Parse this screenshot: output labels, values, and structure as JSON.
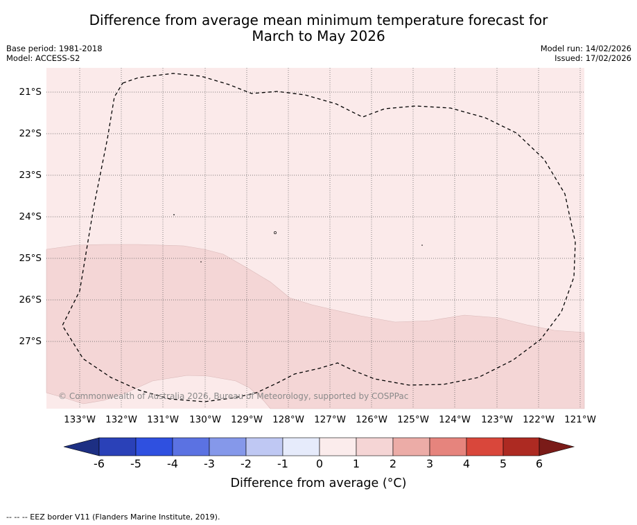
{
  "title_line1": "Difference from average mean minimum temperature forecast for",
  "title_line2": "March to May 2026",
  "base_period": "Base period: 1981-2018",
  "model": "Model: ACCESS-S2",
  "model_run": "Model run: 14/02/2026",
  "issued": "Issued: 17/02/2026",
  "copyright": "© Commonwealth of Australia 2026, Bureau of Meteorology, supported by COSPPac",
  "x_ticks": [
    "133°W",
    "132°W",
    "131°W",
    "130°W",
    "129°W",
    "128°W",
    "127°W",
    "126°W",
    "125°W",
    "124°W",
    "123°W",
    "122°W",
    "121°W"
  ],
  "y_ticks": [
    "21°S",
    "22°S",
    "23°S",
    "24°S",
    "25°S",
    "26°S",
    "27°S"
  ],
  "colorbar": {
    "title": "Difference from average (°C)",
    "labels": [
      "-6",
      "-5",
      "-4",
      "-3",
      "-2",
      "-1",
      "0",
      "1",
      "2",
      "3",
      "4",
      "5",
      "6"
    ],
    "colors": [
      "#1d2f83",
      "#2a41b8",
      "#2f50e0",
      "#5b72e2",
      "#8598ea",
      "#bfc8f3",
      "#e6ebfb",
      "#fbecec",
      "#f5d5d5",
      "#ecaca7",
      "#e6847d",
      "#d9473b",
      "#ad2a22",
      "#7a1b18"
    ]
  },
  "map": {
    "land_color_low": "#fbeaea",
    "land_color_high": "#f4d6d6",
    "grid_color": "#555555"
  },
  "footer": "--  --  -- EEZ border V11 (Flanders Marine Institute, 2019)."
}
